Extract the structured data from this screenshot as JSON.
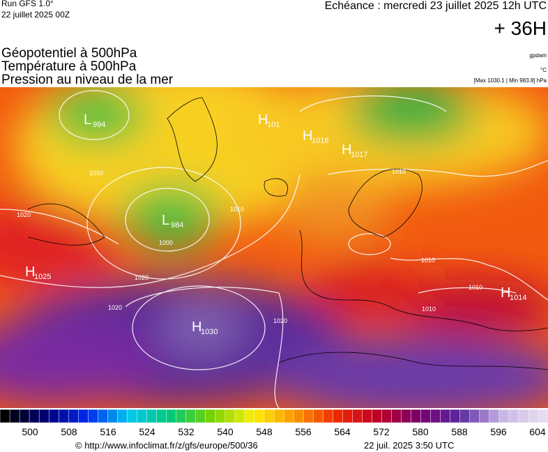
{
  "header": {
    "run": "Run GFS 1.0°",
    "run_date": "22 juillet 2025 00Z",
    "echeance": "Echéance : mercredi 23 juillet 2025 12h UTC",
    "lead": "+ 36H",
    "fields": [
      "Géopotentiel à 500hPa",
      "Température à 500hPa",
      "Pression au niveau de la mer"
    ],
    "units": [
      "gpdam",
      "°C",
      "[Max 1030.1 | Min 983.8] hPa"
    ]
  },
  "map": {
    "centers": [
      {
        "type": "L",
        "value": "994"
      },
      {
        "type": "H",
        "value": "101"
      },
      {
        "type": "H",
        "value": "1016"
      },
      {
        "type": "H",
        "value": "1017"
      },
      {
        "type": "L",
        "value": "984"
      },
      {
        "type": "H",
        "value": "1025"
      },
      {
        "type": "H",
        "value": "1030"
      },
      {
        "type": "H",
        "value": "1014"
      }
    ],
    "isobar_labels": [
      "1010",
      "1020",
      "1000",
      "1010",
      "1020",
      "1020",
      "1010",
      "1010",
      "1010",
      "1020",
      "1010"
    ]
  },
  "colorbar": {
    "labels": [
      "500",
      "508",
      "516",
      "524",
      "532",
      "540",
      "548",
      "556",
      "564",
      "572",
      "580",
      "588",
      "596",
      "604"
    ]
  },
  "footer": {
    "url": "© http://www.infoclimat.fr/z/gfs/europe/500/36",
    "timestamp": "22 juil. 2025  3:50 UTC"
  }
}
